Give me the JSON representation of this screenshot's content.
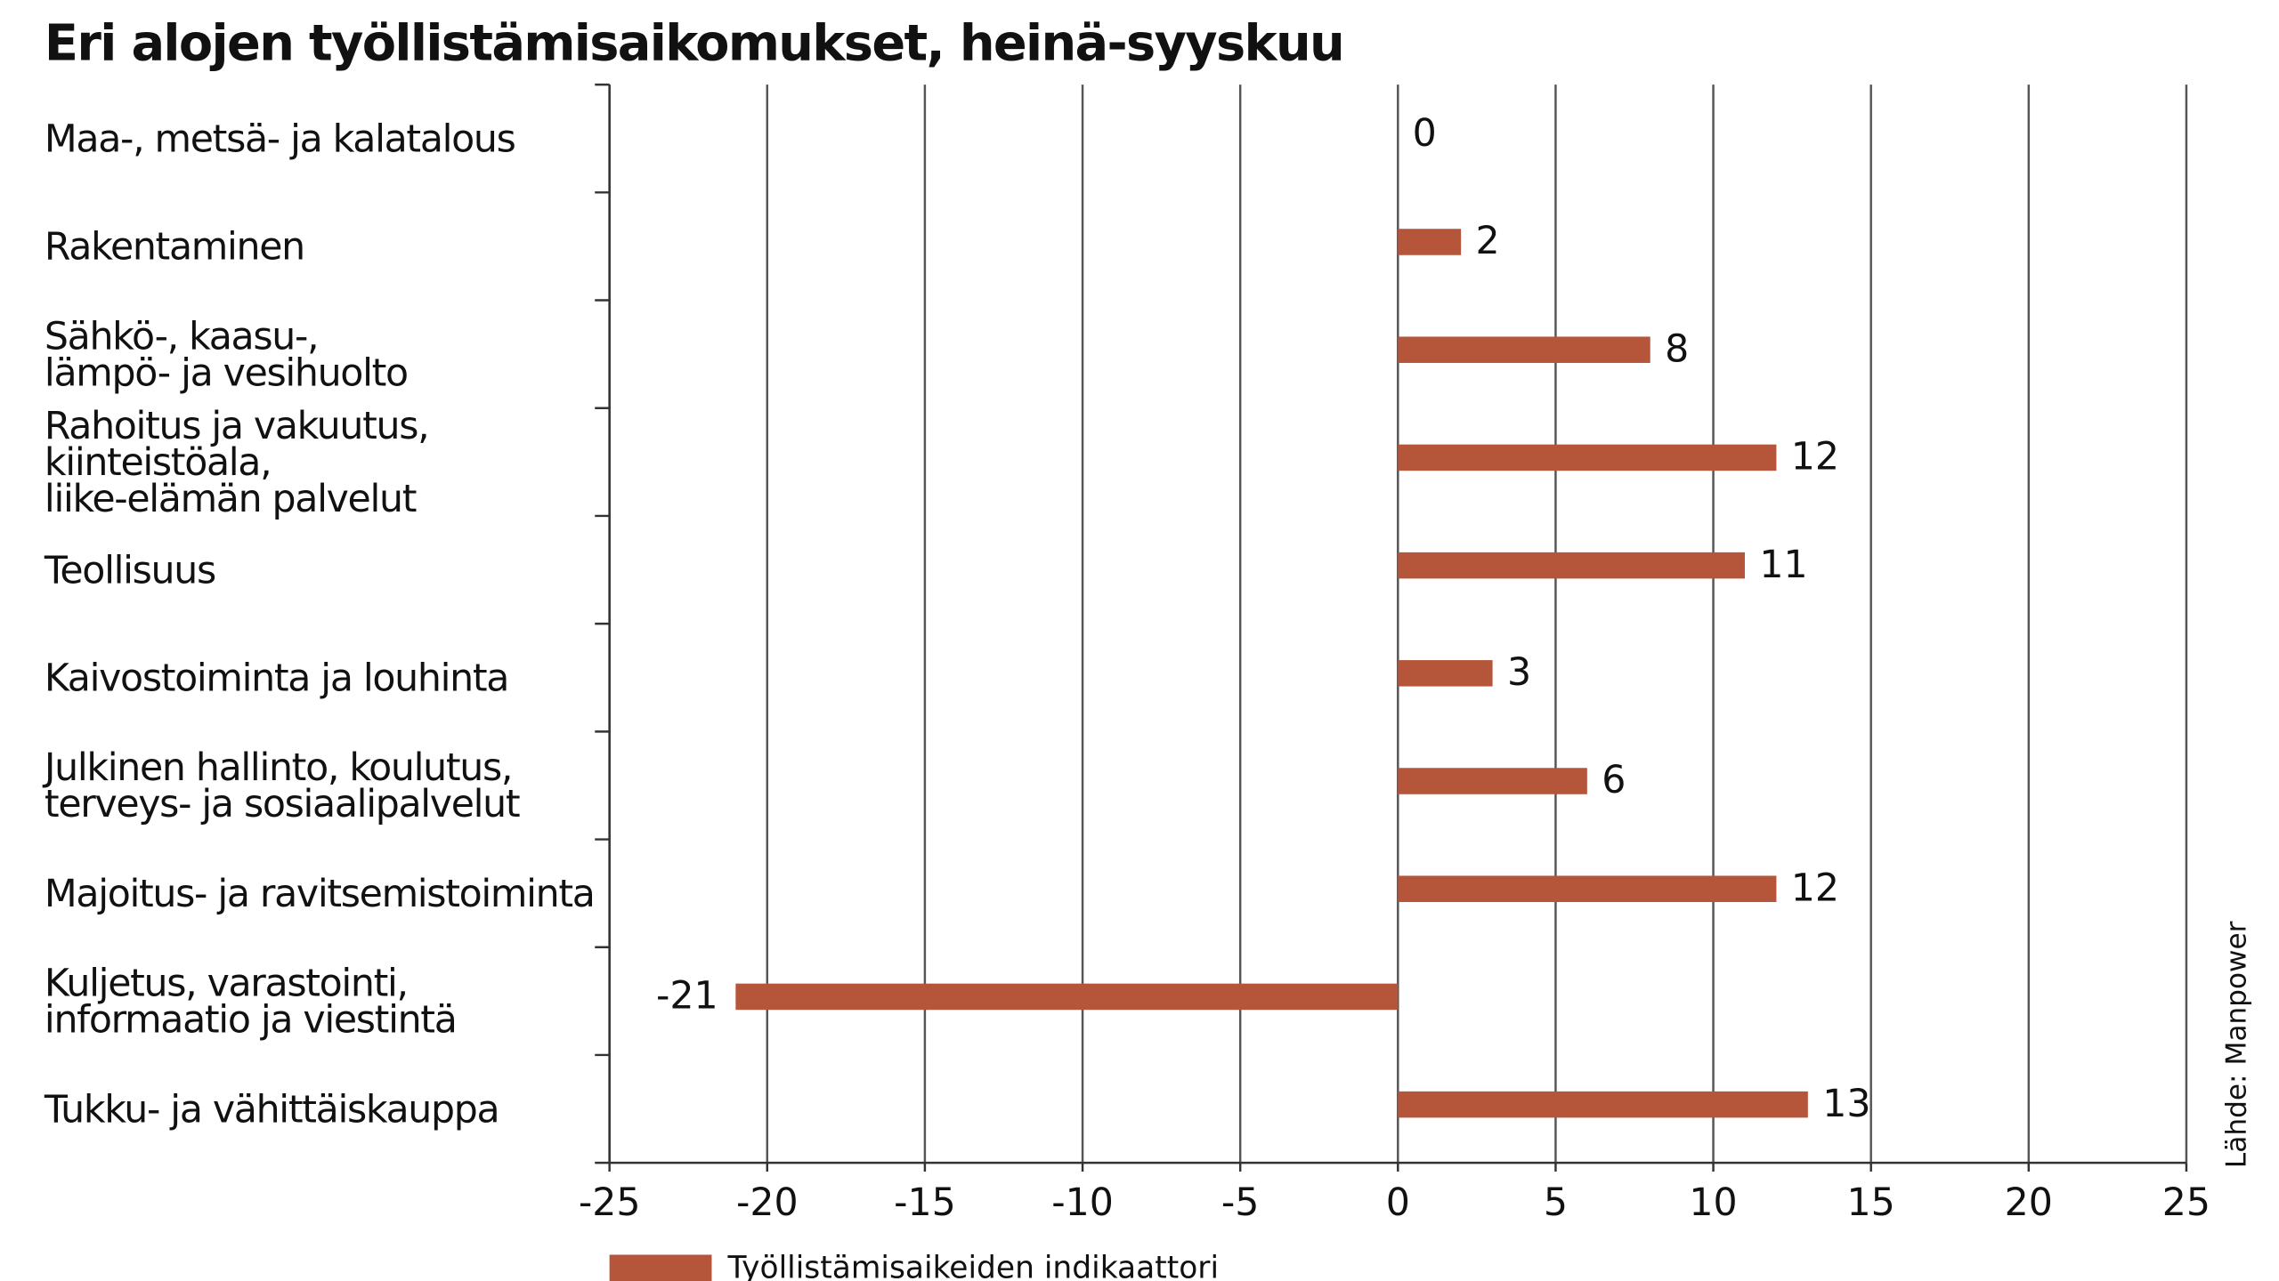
{
  "chart_data": {
    "type": "bar",
    "orientation": "horizontal",
    "title": "Eri alojen työllistämisaikomukset, heinä-syyskuu",
    "categories": [
      "Maa-, metsä- ja kalatalous",
      "Rakentaminen",
      "Sähkö-, kaasu-,\nlämpö- ja vesihuolto",
      "Rahoitus ja vakuutus,\nkiinteistöala,\nliike-elämän palvelut",
      "Teollisuus",
      "Kaivostoiminta ja louhinta",
      "Julkinen hallinto, koulutus,\nterveys- ja sosiaalipalvelut",
      "Majoitus- ja ravitsemistoiminta",
      "Kuljetus, varastointi,\ninformaatio ja viestintä",
      "Tukku- ja vähittäiskauppa"
    ],
    "series": [
      {
        "name": "Työllistämisaikeiden indikaattori",
        "color": "#b5553a",
        "values": [
          0,
          2,
          8,
          12,
          11,
          3,
          6,
          12,
          -21,
          13
        ]
      }
    ],
    "xlim": [
      -25,
      25
    ],
    "xticks": [
      -25,
      -20,
      -15,
      -10,
      -5,
      0,
      5,
      10,
      15,
      20,
      25
    ],
    "grid": true,
    "legend": "bottom-left",
    "source": "Lähde: Manpower"
  }
}
